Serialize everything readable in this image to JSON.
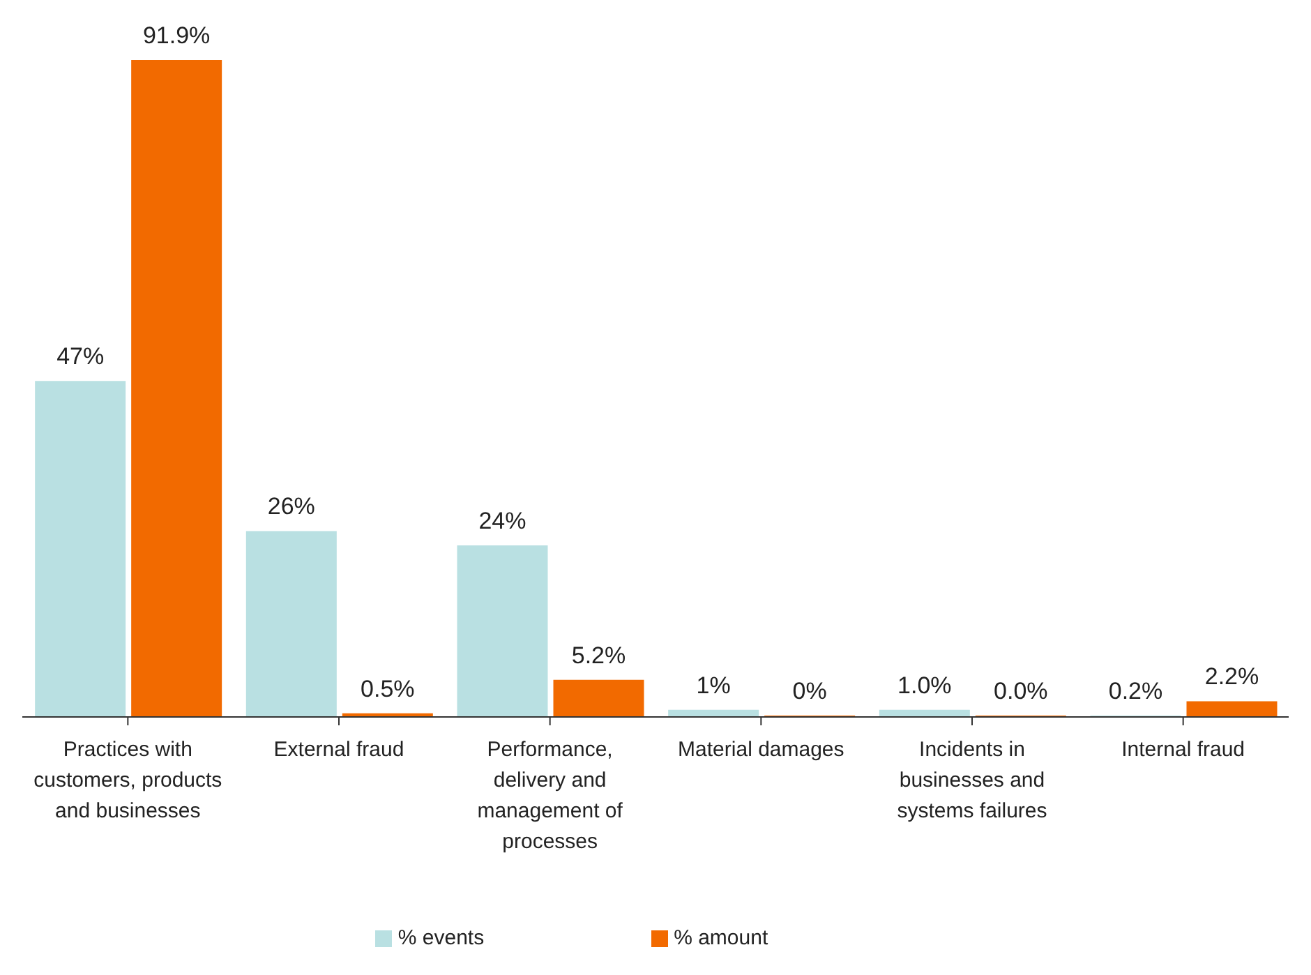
{
  "chart_data": {
    "type": "bar",
    "categories": [
      "Practices with customers, products and businesses",
      "External fraud",
      "Performance, delivery and management of processes",
      "Material damages",
      "Incidents in businesses and systems failures",
      "Internal fraud"
    ],
    "series": [
      {
        "name": "% events",
        "color": "#b9e0e2",
        "values": [
          47,
          26,
          24,
          1,
          1.0,
          0.2
        ],
        "value_labels": [
          "47%",
          "26%",
          "24%",
          "1%",
          "1.0%",
          "0.2%"
        ]
      },
      {
        "name": "% amount",
        "color": "#f26a00",
        "values": [
          91.9,
          0.5,
          5.2,
          0,
          0.0,
          2.2
        ],
        "value_labels": [
          "91.9%",
          "0.5%",
          "5.2%",
          "0%",
          "0.0%",
          "2.2%"
        ]
      }
    ],
    "legend": "bottom",
    "grid": false
  }
}
